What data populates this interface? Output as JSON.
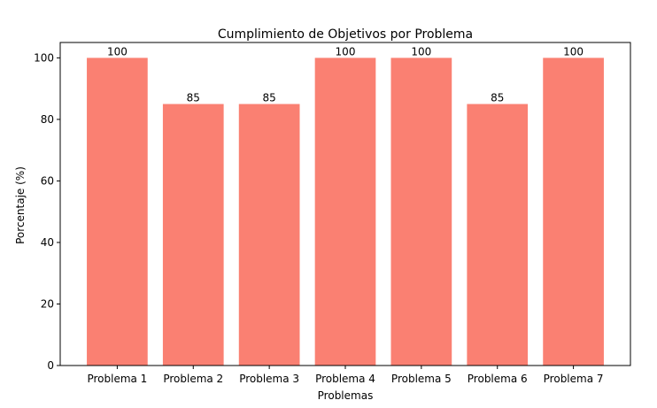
{
  "chart_data": {
    "type": "bar",
    "title": "Cumplimiento de Objetivos por Problema",
    "xlabel": "Problemas",
    "ylabel": "Porcentaje (%)",
    "categories": [
      "Problema 1",
      "Problema 2",
      "Problema 3",
      "Problema 4",
      "Problema 5",
      "Problema 6",
      "Problema 7"
    ],
    "values": [
      100,
      85,
      85,
      100,
      100,
      85,
      100
    ],
    "data_labels": [
      "100",
      "85",
      "85",
      "100",
      "100",
      "85",
      "100"
    ],
    "ylim": [
      0,
      105
    ],
    "yticks": [
      0,
      20,
      40,
      60,
      80,
      100
    ],
    "ytick_labels": [
      "0",
      "20",
      "40",
      "60",
      "80",
      "100"
    ],
    "bar_color": "#fa8072",
    "grid": false,
    "legend": "none"
  }
}
